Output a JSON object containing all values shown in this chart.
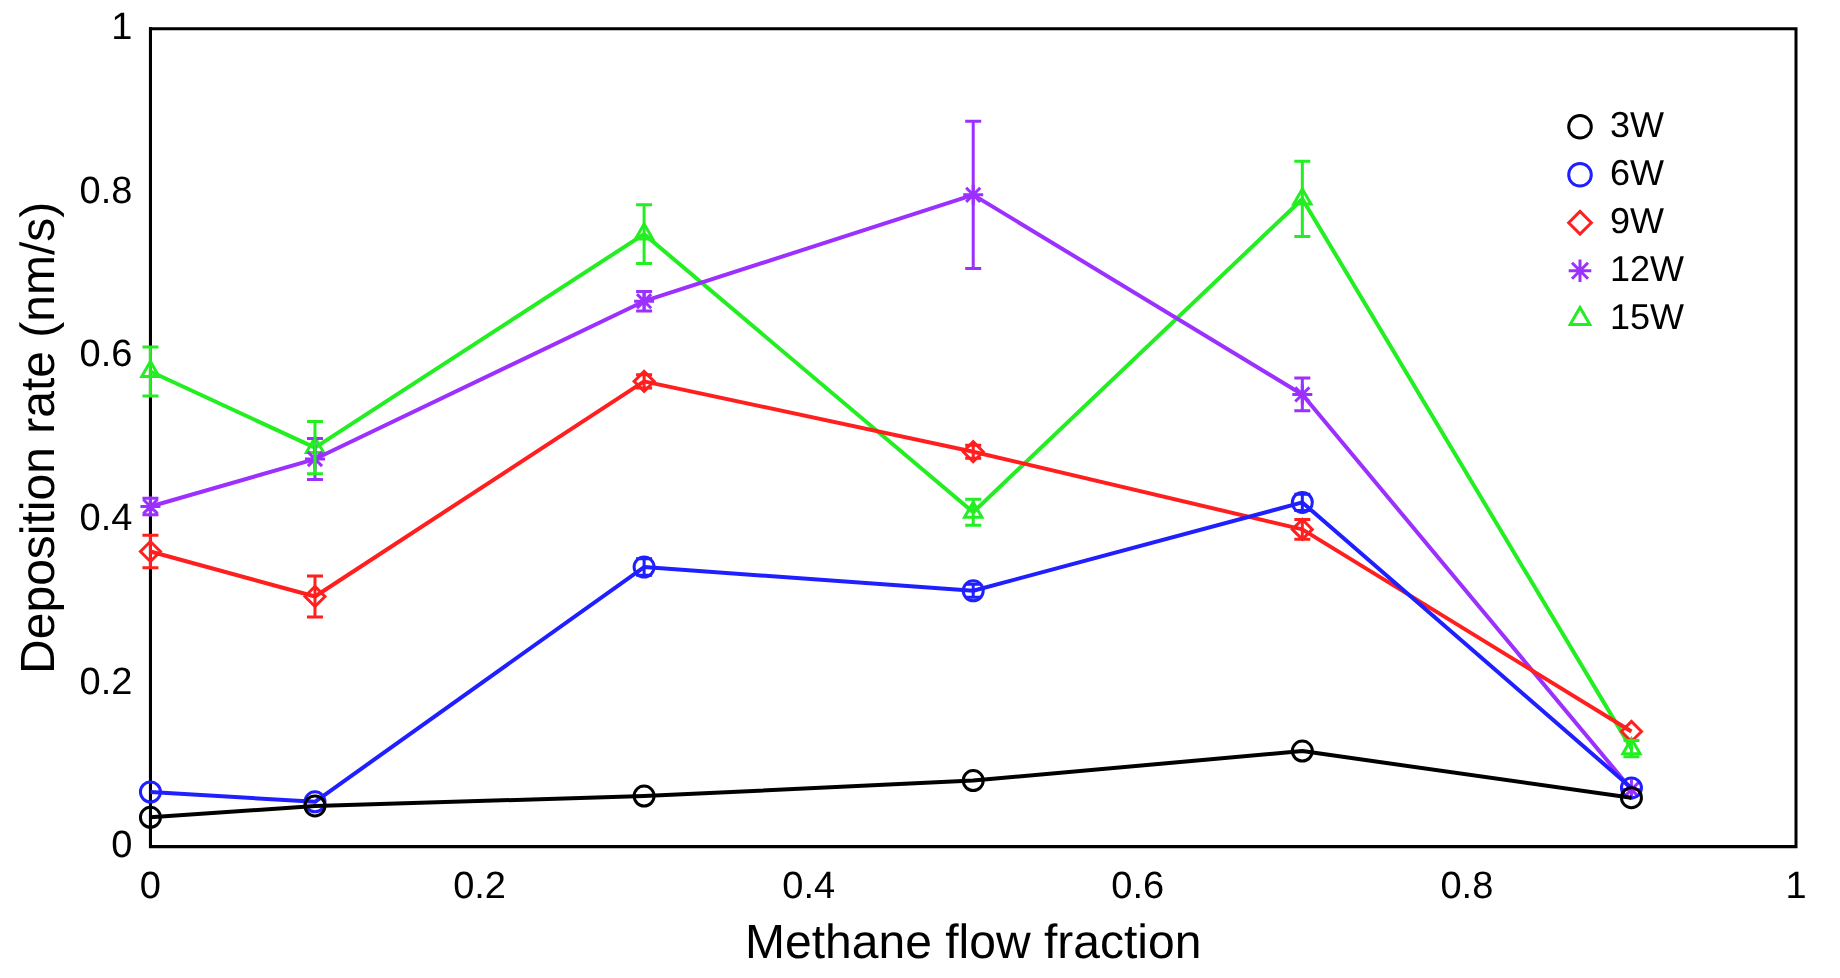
{
  "chart_data": {
    "type": "line",
    "xlabel": "Methane flow fraction",
    "ylabel": "Deposition rate (nm/s)",
    "x": [
      0,
      0.1,
      0.3,
      0.5,
      0.7,
      0.9
    ],
    "xlim": [
      0,
      1
    ],
    "xticks": [
      0,
      0.2,
      0.4,
      0.6,
      0.8,
      1
    ],
    "ylim": [
      0,
      1
    ],
    "yticks": [
      0,
      0.2,
      0.4,
      0.6,
      0.8,
      1
    ],
    "grid": false,
    "legend": "top right",
    "line_style": "solid",
    "series": [
      {
        "name": "3W",
        "color": "#000000",
        "marker": "circle",
        "values": [
          0.036,
          0.05,
          0.062,
          0.081,
          0.117,
          0.06
        ]
      },
      {
        "name": "6W",
        "color": "#1f1fff",
        "marker": "circle",
        "values": [
          0.067,
          0.055,
          0.342,
          0.313,
          0.421,
          0.072
        ],
        "errors": [
          null,
          null,
          0.01,
          0.008,
          0.01,
          null
        ]
      },
      {
        "name": "9W",
        "color": "#ff1f1f",
        "marker": "diamond",
        "values": [
          0.361,
          0.306,
          0.569,
          0.483,
          0.388,
          0.141
        ],
        "errors": [
          0.02,
          0.025,
          0.008,
          0.008,
          0.012,
          null
        ]
      },
      {
        "name": "12W",
        "color": "#9b30ff",
        "marker": "cross",
        "values": [
          0.416,
          0.474,
          0.667,
          0.797,
          0.553,
          0.07
        ],
        "errors": [
          0.01,
          0.025,
          0.012,
          0.09,
          0.02,
          null
        ]
      },
      {
        "name": "15W",
        "color": "#22ee22",
        "marker": "triangle",
        "values": [
          0.581,
          0.488,
          0.749,
          0.409,
          0.792,
          0.12
        ],
        "errors": [
          0.03,
          0.032,
          0.036,
          0.016,
          0.046,
          0.01
        ]
      }
    ]
  }
}
